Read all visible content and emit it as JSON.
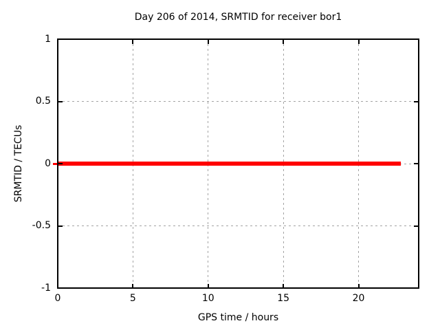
{
  "chart_data": {
    "type": "line",
    "title": "Day 206 of 2014, SRMTID for receiver bor1",
    "xlabel": "GPS time / hours",
    "ylabel": "SRMTID / TECUs",
    "xlim": [
      0,
      24
    ],
    "ylim": [
      -1,
      1
    ],
    "xticks": [
      {
        "value": 0,
        "label": "0"
      },
      {
        "value": 5,
        "label": "5"
      },
      {
        "value": 10,
        "label": "10"
      },
      {
        "value": 15,
        "label": "15"
      },
      {
        "value": 20,
        "label": "20"
      }
    ],
    "yticks": [
      {
        "value": -1,
        "label": "-1"
      },
      {
        "value": -0.5,
        "label": "-0.5"
      },
      {
        "value": 0,
        "label": "0"
      },
      {
        "value": 0.5,
        "label": "0.5"
      },
      {
        "value": 1,
        "label": "1"
      }
    ],
    "grid": {
      "enabled": true,
      "style": "dashed"
    },
    "series": [
      {
        "name": "SRMTID",
        "color": "#ff0000",
        "style": "thick solid line",
        "y": 0,
        "x_start": 0,
        "x_end": 22.8,
        "points": [
          [
            0,
            0
          ],
          [
            22.8,
            0
          ]
        ]
      }
    ]
  },
  "colors": {
    "line": "#ff0000",
    "grid": "#a3a3a3",
    "border": "#000000",
    "text": "#000000",
    "background": "#ffffff"
  }
}
